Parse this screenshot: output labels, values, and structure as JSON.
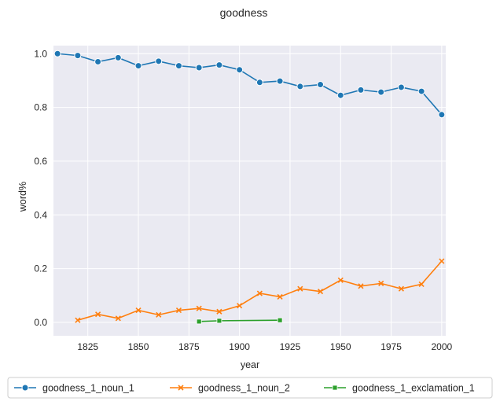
{
  "chart_data": {
    "type": "line",
    "title": "goodness",
    "xlabel": "year",
    "ylabel": "word%",
    "xlim": [
      1808,
      2002
    ],
    "ylim": [
      -0.05,
      1.03
    ],
    "xticks": [
      1825,
      1850,
      1875,
      1900,
      1925,
      1950,
      1975,
      2000
    ],
    "yticks": [
      0.0,
      0.2,
      0.4,
      0.6,
      0.8,
      1.0
    ],
    "xtick_labels": [
      "1825",
      "1850",
      "1875",
      "1900",
      "1925",
      "1950",
      "1975",
      "2000"
    ],
    "ytick_labels": [
      "0.0",
      "0.2",
      "0.4",
      "0.6",
      "0.8",
      "1.0"
    ],
    "grid": true,
    "legend_position": "bottom-center",
    "series": [
      {
        "name": "goodness_1_noun_1",
        "color": "#1f77b4",
        "marker": "circle",
        "x": [
          1810,
          1820,
          1830,
          1840,
          1850,
          1860,
          1870,
          1880,
          1890,
          1900,
          1910,
          1920,
          1930,
          1940,
          1950,
          1960,
          1970,
          1980,
          1990,
          2000
        ],
        "y": [
          1.0,
          0.993,
          0.97,
          0.985,
          0.955,
          0.972,
          0.955,
          0.948,
          0.958,
          0.94,
          0.893,
          0.898,
          0.878,
          0.885,
          0.845,
          0.865,
          0.857,
          0.875,
          0.86,
          0.773
        ]
      },
      {
        "name": "goodness_1_noun_2",
        "color": "#ff7f0e",
        "marker": "x",
        "x": [
          1820,
          1830,
          1840,
          1850,
          1860,
          1870,
          1880,
          1890,
          1900,
          1910,
          1920,
          1930,
          1940,
          1950,
          1960,
          1970,
          1980,
          1990,
          2000
        ],
        "y": [
          0.008,
          0.03,
          0.015,
          0.045,
          0.028,
          0.045,
          0.052,
          0.04,
          0.062,
          0.108,
          0.095,
          0.125,
          0.115,
          0.157,
          0.135,
          0.145,
          0.125,
          0.142,
          0.228
        ]
      },
      {
        "name": "goodness_1_exclamation_1",
        "color": "#2ca02c",
        "marker": "square",
        "x": [
          1880,
          1890,
          1920
        ],
        "y": [
          0.003,
          0.006,
          0.008
        ]
      }
    ]
  }
}
